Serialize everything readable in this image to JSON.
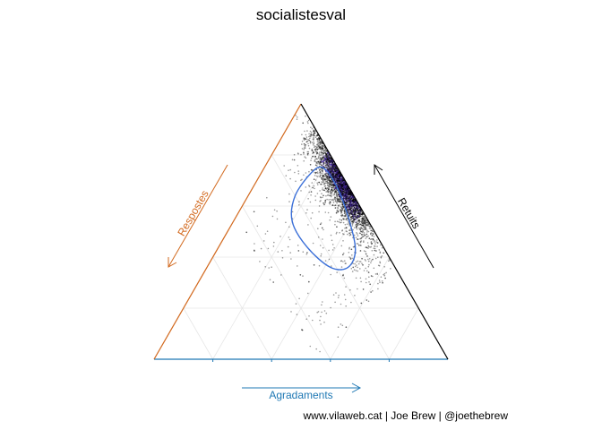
{
  "chart_data": {
    "type": "scatter",
    "subtype": "ternary",
    "title": "socialistesval",
    "axes": {
      "bottom": {
        "label": "Agradaments",
        "color": "#1f78b4"
      },
      "left": {
        "label": "Respostes",
        "color": "#d2691e"
      },
      "right": {
        "label": "Retuits",
        "color": "#000000"
      }
    },
    "grid": true,
    "grid_step": 0.2,
    "point_color": "#000000",
    "density_fill_color": "#3b1f8f",
    "contour_color": "#3a6fd8",
    "point_summary": {
      "count_approx": 3500,
      "dominant_component": "Retuits",
      "typical_agradaments_share": [
        0.15,
        0.45
      ],
      "typical_respostes_share": [
        0.0,
        0.12
      ]
    },
    "contour": [
      {
        "agradaments": 0.17,
        "respostes": 0.1
      },
      {
        "agradaments": 0.16,
        "respostes": 0.2
      },
      {
        "agradaments": 0.2,
        "respostes": 0.26
      },
      {
        "agradaments": 0.3,
        "respostes": 0.26
      },
      {
        "agradaments": 0.42,
        "respostes": 0.22
      },
      {
        "agradaments": 0.48,
        "respostes": 0.16
      },
      {
        "agradaments": 0.47,
        "respostes": 0.1
      },
      {
        "agradaments": 0.38,
        "respostes": 0.06
      },
      {
        "agradaments": 0.28,
        "respostes": 0.04
      },
      {
        "agradaments": 0.2,
        "respostes": 0.05
      }
    ]
  },
  "caption": "www.vilaweb.cat | Joe Brew | @joethebrew"
}
